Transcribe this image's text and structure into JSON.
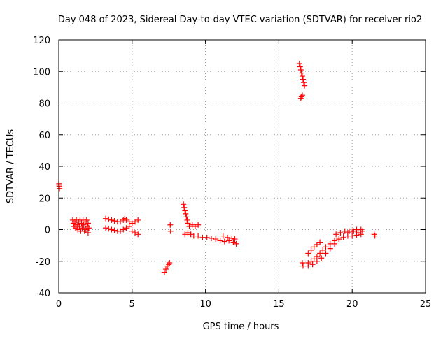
{
  "chart_data": {
    "type": "scatter",
    "title": "Day 048 of 2023, Sidereal Day-to-day VTEC variation (SDTVAR) for receiver rio2",
    "xlabel": "GPS time / hours",
    "ylabel": "SDTVAR / TECUs",
    "xlim": [
      0,
      25
    ],
    "ylim": [
      -40,
      120
    ],
    "xticks": [
      "0",
      "5",
      "10",
      "15",
      "20",
      "25"
    ],
    "yticks": [
      "-40",
      "-20",
      "0",
      "20",
      "40",
      "60",
      "80",
      "100",
      "120"
    ],
    "grid": true,
    "marker": "plus",
    "color": "#ff0000",
    "series": [
      {
        "points": [
          [
            0.02,
            29
          ],
          [
            0.03,
            27.5
          ],
          [
            0.05,
            26
          ],
          [
            0.95,
            6
          ],
          [
            1.0,
            4
          ],
          [
            1.05,
            2
          ],
          [
            1.1,
            5
          ],
          [
            1.15,
            1
          ],
          [
            1.2,
            6
          ],
          [
            1.25,
            3
          ],
          [
            1.3,
            0
          ],
          [
            1.35,
            5
          ],
          [
            1.4,
            2
          ],
          [
            1.45,
            6
          ],
          [
            1.5,
            -1
          ],
          [
            1.55,
            4
          ],
          [
            1.6,
            1
          ],
          [
            1.65,
            6
          ],
          [
            1.7,
            3
          ],
          [
            1.75,
            -1
          ],
          [
            1.8,
            5
          ],
          [
            1.85,
            0
          ],
          [
            1.9,
            6
          ],
          [
            1.95,
            2
          ],
          [
            2.0,
            -2
          ],
          [
            2.0,
            4
          ],
          [
            2.05,
            1
          ],
          [
            3.2,
            7
          ],
          [
            3.4,
            6.5
          ],
          [
            3.6,
            6
          ],
          [
            3.8,
            5.5
          ],
          [
            4.0,
            5
          ],
          [
            4.2,
            5
          ],
          [
            4.4,
            6
          ],
          [
            4.5,
            7
          ],
          [
            4.6,
            6
          ],
          [
            4.8,
            5
          ],
          [
            5.0,
            4
          ],
          [
            5.2,
            5
          ],
          [
            5.4,
            6
          ],
          [
            3.2,
            1
          ],
          [
            3.4,
            0.5
          ],
          [
            3.6,
            0
          ],
          [
            3.8,
            -0.5
          ],
          [
            4.0,
            -1
          ],
          [
            4.2,
            -1
          ],
          [
            4.4,
            0
          ],
          [
            4.6,
            1
          ],
          [
            4.8,
            2
          ],
          [
            5.0,
            -1
          ],
          [
            5.2,
            -2
          ],
          [
            5.4,
            -3
          ],
          [
            7.2,
            -27
          ],
          [
            7.3,
            -25
          ],
          [
            7.4,
            -23
          ],
          [
            7.5,
            -22
          ],
          [
            7.55,
            -21
          ],
          [
            7.6,
            3
          ],
          [
            7.62,
            -1
          ],
          [
            8.5,
            16
          ],
          [
            8.55,
            14
          ],
          [
            8.6,
            12
          ],
          [
            8.65,
            10
          ],
          [
            8.7,
            8
          ],
          [
            8.75,
            6
          ],
          [
            8.8,
            4
          ],
          [
            8.6,
            -3
          ],
          [
            8.9,
            2
          ],
          [
            9.1,
            3
          ],
          [
            9.3,
            2
          ],
          [
            9.5,
            3
          ],
          [
            8.8,
            -2
          ],
          [
            9.0,
            -3
          ],
          [
            9.2,
            -4
          ],
          [
            9.5,
            -4
          ],
          [
            9.8,
            -5
          ],
          [
            10.1,
            -5
          ],
          [
            10.4,
            -5.5
          ],
          [
            10.7,
            -6
          ],
          [
            11.0,
            -7
          ],
          [
            11.3,
            -7.5
          ],
          [
            11.6,
            -7
          ],
          [
            11.9,
            -8
          ],
          [
            12.1,
            -9
          ],
          [
            11.2,
            -4
          ],
          [
            11.5,
            -5
          ],
          [
            11.8,
            -5.5
          ],
          [
            12.0,
            -6
          ],
          [
            16.4,
            105
          ],
          [
            16.45,
            103
          ],
          [
            16.5,
            101
          ],
          [
            16.55,
            99
          ],
          [
            16.6,
            97
          ],
          [
            16.65,
            95
          ],
          [
            16.7,
            93
          ],
          [
            16.75,
            91
          ],
          [
            16.5,
            83
          ],
          [
            16.55,
            84
          ],
          [
            16.6,
            85
          ],
          [
            16.6,
            -21
          ],
          [
            16.65,
            -23
          ],
          [
            17.0,
            -21
          ],
          [
            17.2,
            -20
          ],
          [
            17.4,
            -18.5
          ],
          [
            17.6,
            -17
          ],
          [
            17.8,
            -15
          ],
          [
            18.0,
            -13
          ],
          [
            18.2,
            -11
          ],
          [
            18.5,
            -9
          ],
          [
            18.8,
            -7
          ],
          [
            19.1,
            -6
          ],
          [
            19.4,
            -5
          ],
          [
            19.7,
            -4
          ],
          [
            20.0,
            -4
          ],
          [
            20.3,
            -3.5
          ],
          [
            20.6,
            -3
          ],
          [
            17.0,
            -15
          ],
          [
            17.2,
            -13
          ],
          [
            17.4,
            -11
          ],
          [
            17.6,
            -9.5
          ],
          [
            17.8,
            -8
          ],
          [
            17.0,
            -23
          ],
          [
            17.3,
            -22
          ],
          [
            17.6,
            -20
          ],
          [
            17.9,
            -18
          ],
          [
            18.2,
            -15
          ],
          [
            18.5,
            -12
          ],
          [
            18.8,
            -9
          ],
          [
            19.1,
            -6
          ],
          [
            19.4,
            -4
          ],
          [
            19.7,
            -2
          ],
          [
            20.0,
            -1
          ],
          [
            20.3,
            0
          ],
          [
            20.6,
            0
          ],
          [
            18.9,
            -3
          ],
          [
            19.2,
            -2
          ],
          [
            19.5,
            -1
          ],
          [
            19.8,
            -1
          ],
          [
            20.1,
            -1
          ],
          [
            20.4,
            -2
          ],
          [
            20.7,
            -1
          ],
          [
            21.5,
            -3
          ],
          [
            21.55,
            -4
          ]
        ]
      }
    ]
  }
}
